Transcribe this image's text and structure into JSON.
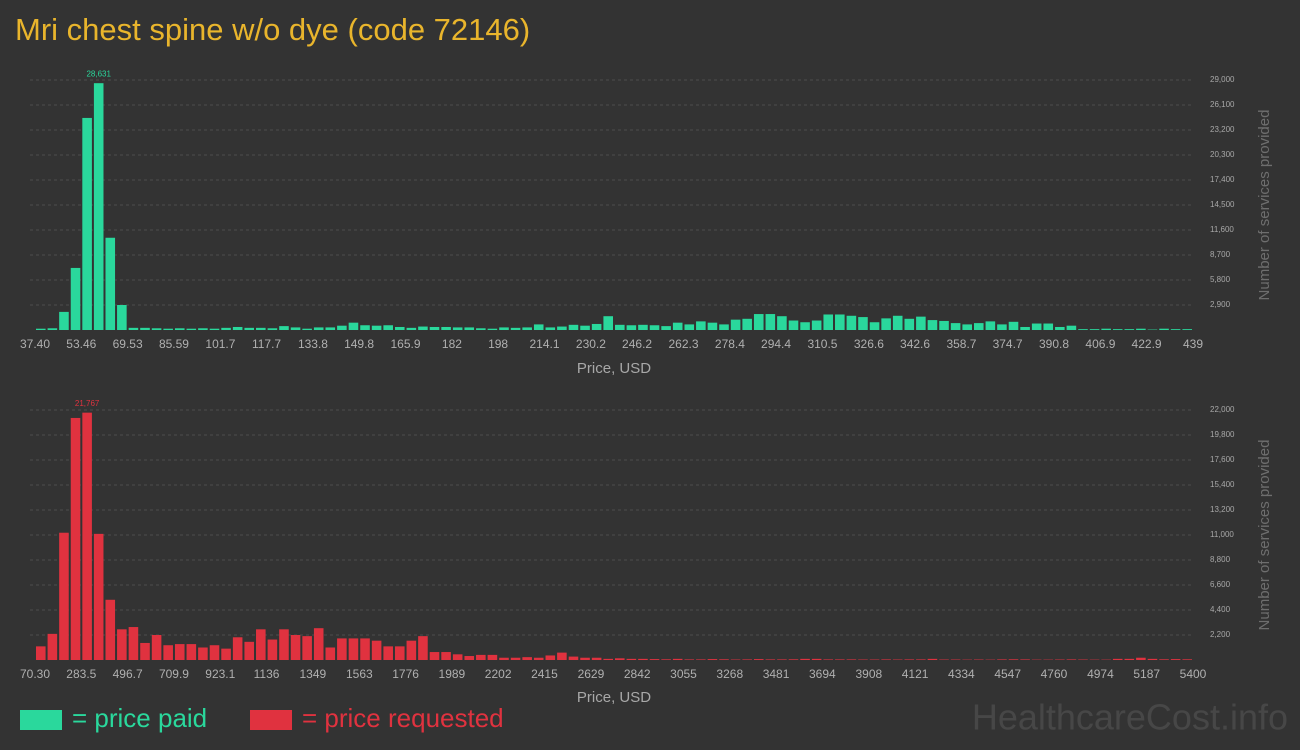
{
  "title": "Mri chest spine w/o dye (code 72146)",
  "watermark": "HealthcareCost.info",
  "chart_data": [
    {
      "type": "histogram",
      "xlabel": "Price, USD",
      "ylabel": "Number of services provided",
      "grid": true,
      "xlim": [
        37.4,
        439
      ],
      "ylim": [
        0,
        29000
      ],
      "xticks": [
        {
          "value": 37.4,
          "label": "37.40"
        },
        53.46,
        69.53,
        85.59,
        101.7,
        117.7,
        133.8,
        149.8,
        165.9,
        182,
        198,
        214.1,
        230.2,
        246.2,
        262.3,
        278.4,
        294.4,
        310.5,
        326.6,
        342.6,
        358.7,
        374.7,
        390.8,
        406.9,
        422.9,
        439
      ],
      "yticks": [
        {
          "value": 2900,
          "label": "2,900"
        },
        {
          "value": 5800,
          "label": "5,800"
        },
        {
          "value": 8700,
          "label": "8,700"
        },
        {
          "value": 11600,
          "label": "11,600"
        },
        {
          "value": 14500,
          "label": "14,500"
        },
        {
          "value": 17400,
          "label": "17,400"
        },
        {
          "value": 20300,
          "label": "20,300"
        },
        {
          "value": 23200,
          "label": "23,200"
        },
        {
          "value": 26100,
          "label": "26,100"
        },
        {
          "value": 29000,
          "label": "29,000"
        }
      ],
      "bins": [
        37.4,
        41.42,
        45.43,
        49.45,
        53.46,
        57.48,
        61.5,
        65.51,
        69.53,
        73.54,
        77.56,
        81.58,
        85.59,
        89.61,
        93.62,
        97.64,
        101.66,
        105.67,
        109.69,
        113.7,
        117.72,
        121.74,
        125.75,
        129.77,
        133.78,
        137.8,
        141.82,
        145.83,
        149.85,
        153.86,
        157.88,
        161.9,
        165.91,
        169.93,
        173.94,
        177.96,
        181.98,
        185.99,
        190.01,
        194.02,
        198.04,
        202.06,
        206.07,
        210.09,
        214.1,
        218.12,
        222.14,
        226.15,
        230.17,
        234.18,
        238.2,
        242.22,
        246.23,
        250.25,
        254.26,
        258.28,
        262.3,
        266.31,
        270.33,
        274.34,
        278.36,
        282.38,
        286.39,
        290.41,
        294.42,
        298.44,
        302.46,
        306.47,
        310.49,
        314.5,
        318.52,
        322.54,
        326.55,
        330.57,
        334.58,
        338.6,
        342.62,
        346.63,
        350.65,
        354.66,
        358.68,
        362.7,
        366.71,
        370.73,
        374.74,
        378.76,
        382.78,
        386.79,
        390.81,
        394.82,
        398.84,
        402.86,
        406.87,
        410.89,
        414.9,
        418.92,
        422.94,
        426.95,
        430.97,
        434.98,
        439
      ],
      "series": [
        {
          "name": "= price paid",
          "color": "#2ad89c",
          "values": [
            150,
            200,
            2100,
            7200,
            24600,
            28631,
            10700,
            2900,
            250,
            250,
            200,
            150,
            200,
            150,
            200,
            150,
            250,
            350,
            250,
            250,
            200,
            450,
            300,
            150,
            300,
            300,
            500,
            850,
            550,
            500,
            550,
            350,
            250,
            400,
            350,
            350,
            300,
            300,
            200,
            150,
            300,
            250,
            300,
            650,
            300,
            400,
            600,
            500,
            700,
            1600,
            600,
            550,
            600,
            550,
            450,
            850,
            650,
            1000,
            850,
            650,
            1200,
            1300,
            1850,
            1850,
            1600,
            1100,
            900,
            1100,
            1800,
            1800,
            1650,
            1500,
            900,
            1350,
            1650,
            1300,
            1550,
            1150,
            1050,
            800,
            650,
            800,
            1000,
            650,
            950,
            350,
            750,
            750,
            350,
            500,
            100,
            100,
            150,
            100,
            100,
            150,
            50,
            150,
            100,
            100
          ],
          "value_labels": [
            null,
            null,
            null,
            null,
            null,
            "28,631",
            null,
            null,
            null,
            null,
            null,
            null,
            null,
            null,
            null,
            null,
            null,
            null,
            null,
            null,
            null,
            null,
            null,
            null,
            null,
            null,
            null,
            null,
            null,
            null,
            null,
            null,
            null,
            null,
            null,
            null,
            null,
            null,
            null,
            null,
            null,
            null,
            null,
            null,
            null,
            null,
            null,
            null,
            null,
            null,
            null,
            null,
            null,
            null,
            null,
            null,
            null,
            null,
            null,
            null,
            null,
            null,
            null,
            null,
            null,
            null,
            null,
            null,
            null,
            null,
            null,
            null,
            null,
            null,
            null,
            null,
            null,
            null,
            null,
            null,
            null,
            null,
            null,
            null,
            null,
            null,
            null,
            null,
            null,
            null,
            null,
            null,
            null,
            null,
            null,
            null,
            null,
            null,
            null,
            null
          ]
        }
      ]
    },
    {
      "type": "histogram",
      "xlabel": "Price, USD",
      "ylabel": "Number of services provided",
      "grid": true,
      "xlim": [
        70.3,
        5400
      ],
      "ylim": [
        0,
        22000
      ],
      "xticks": [
        {
          "value": 70.3,
          "label": "70.30"
        },
        283.5,
        496.7,
        709.9,
        923.1,
        1136,
        1349,
        1563,
        1776,
        1989,
        2202,
        2415,
        2629,
        2842,
        3055,
        3268,
        3481,
        3694,
        3908,
        4121,
        4334,
        4547,
        4760,
        4974,
        5187,
        5400
      ],
      "yticks": [
        {
          "value": 2200,
          "label": "2,200"
        },
        {
          "value": 4400,
          "label": "4,400"
        },
        {
          "value": 6600,
          "label": "6,600"
        },
        {
          "value": 8800,
          "label": "8,800"
        },
        {
          "value": 11000,
          "label": "11,000"
        },
        {
          "value": 13200,
          "label": "13,200"
        },
        {
          "value": 15400,
          "label": "15,400"
        },
        {
          "value": 17600,
          "label": "17,600"
        },
        {
          "value": 19800,
          "label": "19,800"
        },
        {
          "value": 22000,
          "label": "22,000"
        }
      ],
      "bins": [
        70.3,
        123.6,
        176.89,
        230.19,
        283.49,
        336.79,
        390.08,
        443.38,
        496.68,
        549.97,
        603.27,
        656.57,
        709.86,
        763.16,
        816.46,
        869.76,
        923.05,
        976.35,
        1029.65,
        1082.94,
        1136.24,
        1189.54,
        1242.83,
        1296.13,
        1349.43,
        1402.73,
        1456.02,
        1509.32,
        1562.62,
        1615.91,
        1669.21,
        1722.51,
        1775.8,
        1829.1,
        1882.4,
        1935.7,
        1988.99,
        2042.29,
        2095.59,
        2148.88,
        2202.18,
        2255.48,
        2308.77,
        2362.07,
        2415.37,
        2468.67,
        2521.96,
        2575.26,
        2628.56,
        2681.85,
        2735.15,
        2788.45,
        2841.74,
        2895.04,
        2948.34,
        3001.64,
        3054.93,
        3108.23,
        3161.53,
        3214.82,
        3268.12,
        3321.42,
        3374.71,
        3428.01,
        3481.31,
        3534.61,
        3587.9,
        3641.2,
        3694.5,
        3747.79,
        3801.09,
        3854.39,
        3907.68,
        3960.98,
        4014.28,
        4067.58,
        4120.87,
        4174.17,
        4227.47,
        4280.76,
        4334.06,
        4387.36,
        4440.65,
        4493.95,
        4547.25,
        4600.55,
        4653.84,
        4707.14,
        4760.44,
        4813.73,
        4867.03,
        4920.33,
        4973.62,
        5026.92,
        5080.22,
        5133.52,
        5186.81,
        5240.11,
        5293.41,
        5346.7,
        5400
      ],
      "series": [
        {
          "name": "= price requested",
          "color": "#e0323f",
          "values": [
            1200,
            2300,
            11200,
            21300,
            21767,
            11100,
            5300,
            2700,
            2900,
            1500,
            2200,
            1300,
            1400,
            1400,
            1100,
            1300,
            1000,
            2000,
            1600,
            2700,
            1800,
            2700,
            2200,
            2100,
            2800,
            1100,
            1900,
            1900,
            1900,
            1700,
            1200,
            1200,
            1700,
            2100,
            700,
            700,
            500,
            350,
            450,
            450,
            200,
            200,
            250,
            200,
            400,
            650,
            300,
            200,
            200,
            100,
            150,
            100,
            100,
            80,
            60,
            100,
            50,
            50,
            80,
            60,
            40,
            50,
            80,
            50,
            50,
            60,
            100,
            100,
            50,
            50,
            50,
            40,
            40,
            50,
            40,
            50,
            50,
            100,
            40,
            40,
            30,
            40,
            30,
            50,
            60,
            50,
            30,
            30,
            40,
            50,
            40,
            30,
            30,
            100,
            100,
            200,
            100,
            60,
            80,
            60
          ],
          "value_labels": [
            null,
            null,
            null,
            null,
            "21,767",
            null,
            null,
            null,
            null,
            null,
            null,
            null,
            null,
            null,
            null,
            null,
            null,
            null,
            null,
            null,
            null,
            null,
            null,
            null,
            null,
            null,
            null,
            null,
            null,
            null,
            null,
            null,
            null,
            null,
            null,
            null,
            null,
            null,
            null,
            null,
            null,
            null,
            null,
            null,
            null,
            null,
            null,
            null,
            null,
            null,
            null,
            null,
            null,
            null,
            null,
            null,
            null,
            null,
            null,
            null,
            null,
            null,
            null,
            null,
            null,
            null,
            null,
            null,
            null,
            null,
            null,
            null,
            null,
            null,
            null,
            null,
            null,
            null,
            null,
            null,
            null,
            null,
            null,
            null,
            null,
            null,
            null,
            null,
            null,
            null,
            null,
            null,
            null,
            null,
            null,
            null,
            null,
            null,
            null,
            null
          ]
        }
      ]
    }
  ]
}
